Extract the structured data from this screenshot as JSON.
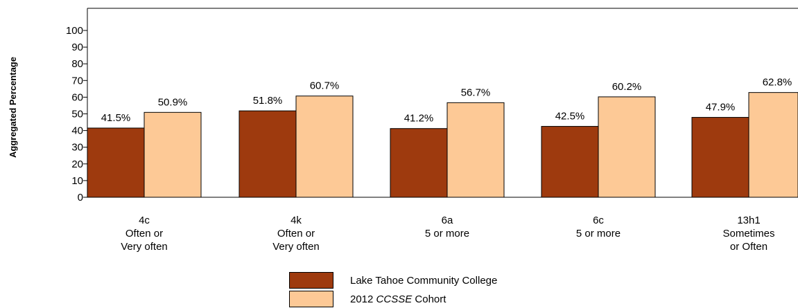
{
  "chart_data": {
    "type": "bar",
    "title": "",
    "xlabel": "",
    "ylabel": "Aggregated Percentage",
    "ylim": [
      0,
      100
    ],
    "yticks": [
      0,
      10,
      20,
      30,
      40,
      50,
      60,
      70,
      80,
      90,
      100
    ],
    "categories": [
      [
        "4c",
        "Often or",
        "Very often"
      ],
      [
        "4k",
        "Often or",
        "Very often"
      ],
      [
        "6a",
        "5 or more"
      ],
      [
        "6c",
        "5 or more"
      ],
      [
        "13h1",
        "Sometimes",
        "or Often"
      ]
    ],
    "series": [
      {
        "name": "Lake Tahoe Community College",
        "color": "#9e3a0e",
        "values": [
          41.5,
          51.8,
          41.2,
          42.5,
          47.9
        ],
        "labels": [
          "41.5%",
          "51.8%",
          "41.2%",
          "42.5%",
          "47.9%"
        ]
      },
      {
        "name": "2012 CCSSE Cohort",
        "color": "#fdc996",
        "values": [
          50.9,
          60.7,
          56.7,
          60.2,
          62.8
        ],
        "labels": [
          "50.9%",
          "60.7%",
          "56.7%",
          "60.2%",
          "62.8%"
        ]
      }
    ],
    "grid": false,
    "legend_position": "bottom-center"
  },
  "legend": {
    "item1": "Lake Tahoe Community College",
    "item2_year": "2012",
    "item2_italic": "CCSSE",
    "item2_rest": "Cohort"
  }
}
